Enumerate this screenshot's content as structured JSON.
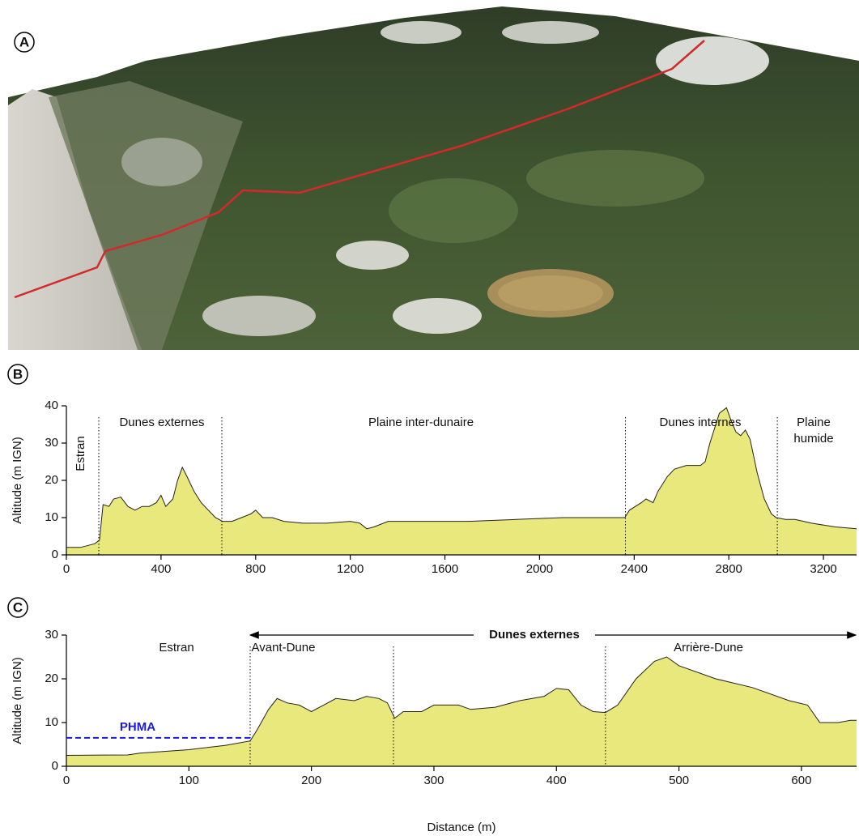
{
  "panel_a": {
    "label": "A"
  },
  "chart_data": [
    {
      "type": "area",
      "panel_label": "B",
      "ylabel": "Altitude (m IGN)",
      "x": [
        0,
        60,
        120,
        140,
        155,
        180,
        200,
        230,
        260,
        290,
        320,
        350,
        380,
        400,
        420,
        450,
        470,
        490,
        510,
        540,
        570,
        600,
        630,
        660,
        700,
        740,
        780,
        800,
        830,
        870,
        920,
        1000,
        1100,
        1200,
        1240,
        1270,
        1300,
        1360,
        1500,
        1700,
        1900,
        2100,
        2200,
        2360,
        2380,
        2430,
        2450,
        2480,
        2500,
        2540,
        2570,
        2620,
        2680,
        2700,
        2720,
        2760,
        2790,
        2810,
        2830,
        2850,
        2870,
        2890,
        2920,
        2950,
        2980,
        3000,
        3040,
        3080,
        3150,
        3250,
        3340
      ],
      "values": [
        2,
        2,
        3,
        4,
        13.5,
        13,
        15,
        15.5,
        13,
        12,
        13,
        13,
        14,
        16,
        13,
        15,
        20,
        23.5,
        21,
        17,
        14,
        12,
        10,
        9,
        9,
        10,
        11,
        12,
        10,
        10,
        9,
        8.5,
        8.5,
        9,
        8.5,
        7,
        7.5,
        9,
        9,
        9,
        9.5,
        10,
        10,
        10,
        12,
        14,
        15,
        14,
        17,
        21,
        23,
        24,
        24,
        25,
        30,
        38,
        39.5,
        36,
        33,
        32,
        33.5,
        31,
        22,
        15,
        11,
        10,
        9.5,
        9.5,
        8.5,
        7.5,
        7
      ],
      "color": "#e8e87c",
      "xlim": [
        0,
        3340
      ],
      "ylim": [
        0,
        40
      ],
      "xticks": [
        0,
        400,
        800,
        1200,
        1600,
        2000,
        2400,
        2800,
        3200
      ],
      "yticks": [
        0,
        10,
        20,
        30,
        40
      ],
      "boundaries": [
        137,
        657,
        2363,
        3005
      ],
      "zones": [
        [
          "Estran"
        ],
        [
          "Dunes externes"
        ],
        [
          "Plaine inter-dunaire"
        ],
        [
          "Dunes internes"
        ],
        [
          "Plaine",
          "humide"
        ]
      ]
    },
    {
      "type": "area",
      "panel_label": "C",
      "ylabel": "Altitude (m IGN)",
      "xlabel": "Distance (m)",
      "x": [
        0,
        50,
        60,
        100,
        130,
        150,
        155,
        165,
        172,
        180,
        190,
        200,
        210,
        220,
        235,
        245,
        255,
        262,
        268,
        275,
        290,
        300,
        320,
        330,
        350,
        370,
        390,
        400,
        410,
        420,
        430,
        440,
        450,
        465,
        480,
        490,
        500,
        530,
        560,
        590,
        605,
        615,
        630,
        640,
        645
      ],
      "values": [
        2.5,
        2.6,
        3,
        3.8,
        4.8,
        5.8,
        8,
        13,
        15.5,
        14.5,
        14,
        12.5,
        14,
        15.5,
        15,
        16,
        15.5,
        14.5,
        11,
        12.5,
        12.5,
        14,
        14,
        13,
        13.5,
        15,
        16,
        17.8,
        17.5,
        14,
        12.5,
        12.3,
        14,
        20,
        24,
        25,
        23,
        20,
        18,
        15,
        14,
        10,
        10,
        10.5,
        10.5
      ],
      "color": "#e8e87c",
      "xlim": [
        0,
        645
      ],
      "ylim": [
        0,
        30
      ],
      "xticks": [
        0,
        100,
        200,
        300,
        400,
        500,
        600
      ],
      "yticks": [
        0,
        10,
        20,
        30
      ],
      "boundaries": [
        150,
        267,
        440
      ],
      "zones": [
        [
          "Estran"
        ],
        [
          "Avant-Dune"
        ],
        [
          "Arrière-Dune"
        ]
      ],
      "span_label": "Dunes externes",
      "reference_line": {
        "label": "PHMA",
        "value": 6.5,
        "color": "#1a1ad8"
      }
    }
  ]
}
